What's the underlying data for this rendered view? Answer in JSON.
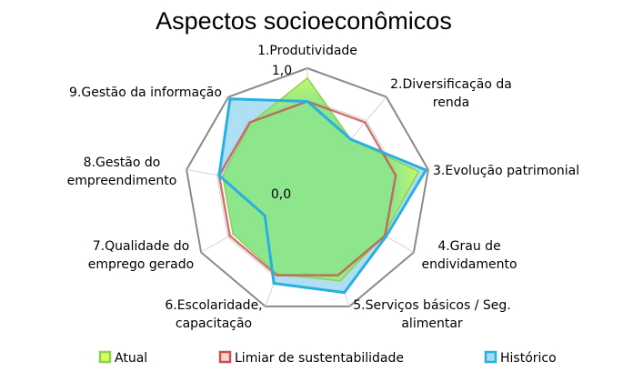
{
  "chart_data": {
    "type": "radar",
    "title": "Aspectos socioeconômicos",
    "categories": [
      [
        "1.Produtividade"
      ],
      [
        "2.Diversificação da",
        "renda"
      ],
      [
        "3.Evolução patrimonial"
      ],
      [
        "4.Grau de",
        "endividamento"
      ],
      [
        "5.Serviços básicos / Seg.",
        "alimentar"
      ],
      [
        "6.Escolaridade,",
        "capacitação"
      ],
      [
        "7.Qualidade do",
        "emprego gerado"
      ],
      [
        "8.Gestão do",
        "empreendimento"
      ],
      [
        "9.Gestão da informação"
      ]
    ],
    "range": [
      0,
      1
    ],
    "tick_labels": [
      "0,0",
      "1,0"
    ],
    "grid": true,
    "legend_position": "bottom",
    "series": [
      {
        "name": "Atual",
        "color": "#8de68c",
        "stroke": "#8fd14f",
        "fill_light": "#d8ff60",
        "values": [
          0.92,
          0.55,
          0.92,
          0.72,
          0.78,
          0.72,
          0.7,
          0.7,
          0.72
        ]
      },
      {
        "name": "Limiar de sustentabilidade",
        "color": "#c9514f",
        "values": [
          0.73,
          0.73,
          0.73,
          0.73,
          0.73,
          0.73,
          0.73,
          0.73,
          0.73
        ]
      },
      {
        "name": "Histórico",
        "color": "#2ab0e0",
        "fill": "#a6dcf2",
        "values": [
          0.73,
          0.55,
          0.98,
          0.74,
          0.88,
          0.8,
          0.4,
          0.73,
          0.98
        ]
      }
    ]
  }
}
